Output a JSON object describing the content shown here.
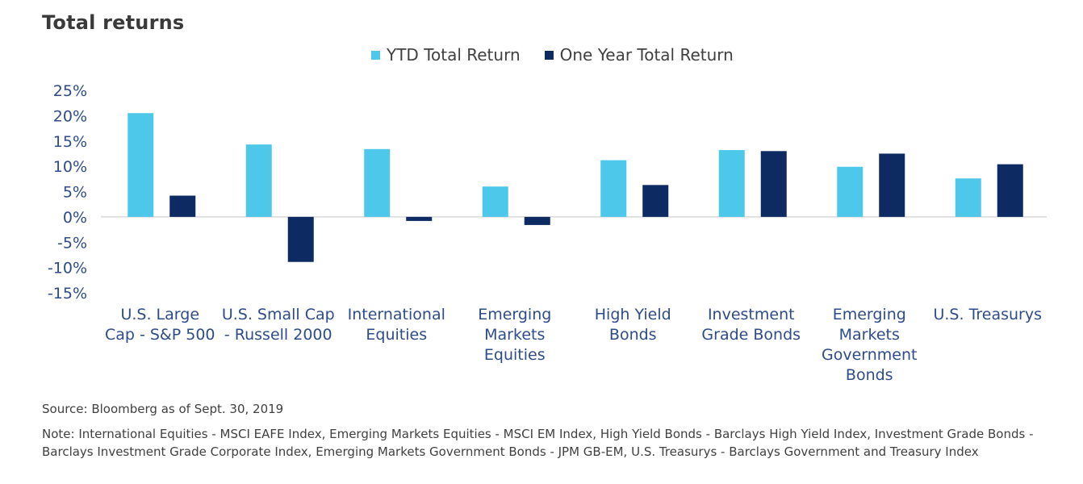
{
  "chart_data": {
    "type": "bar",
    "title": "Total returns",
    "categories": [
      "U.S. Large Cap - S&P 500",
      "U.S. Small Cap - Russell 2000",
      "International Equities",
      "Emerging Markets Equities",
      "High Yield Bonds",
      "Investment Grade Bonds",
      "Emerging Markets Government Bonds",
      "U.S. Treasurys"
    ],
    "series": [
      {
        "name": "YTD Total Return",
        "color": "#4dc8eb",
        "values": [
          20.5,
          14.3,
          13.4,
          6.0,
          11.2,
          13.2,
          9.9,
          7.6
        ]
      },
      {
        "name": "One Year Total Return",
        "color": "#0d2a63",
        "values": [
          4.2,
          -8.9,
          -0.8,
          -1.6,
          6.3,
          13.0,
          12.5,
          10.4
        ]
      }
    ],
    "ylim": [
      -15,
      25
    ],
    "yticks": [
      25,
      20,
      15,
      10,
      5,
      0,
      -5,
      -10,
      -15
    ],
    "ytick_labels": [
      "25%",
      "20%",
      "15%",
      "10%",
      "5%",
      "0%",
      "-5%",
      "-10%",
      "-15%"
    ],
    "legend_position": "top-center",
    "grid": false
  },
  "footer": {
    "source": "Source: Bloomberg as of Sept. 30, 2019",
    "note": "Note: International Equities - MSCI EAFE Index, Emerging Markets Equities - MSCI EM Index, High Yield Bonds - Barclays High Yield Index, Investment Grade Bonds - Barclays Investment Grade Corporate Index, Emerging Markets Government Bonds - JPM GB-EM, U.S. Treasurys - Barclays Government and Treasury Index"
  },
  "colors": {
    "axis_label": "#2e4b8a",
    "zero_line": "#d9d9d9"
  }
}
